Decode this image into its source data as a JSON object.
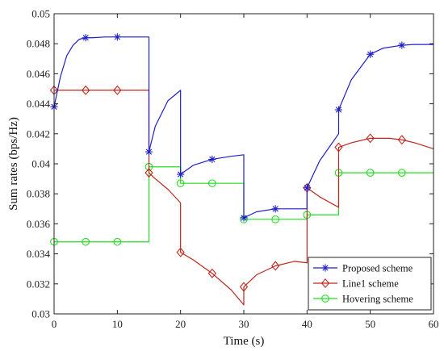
{
  "chart_data": {
    "type": "line",
    "xlabel": "Time (s)",
    "ylabel": "Sum rates (bps/Hz)",
    "xlim": [
      0,
      60
    ],
    "ylim": [
      0.03,
      0.05
    ],
    "xticks": [
      0,
      10,
      20,
      30,
      40,
      50,
      60
    ],
    "xtick_labels": [
      "0",
      "10",
      "20",
      "30",
      "40",
      "50",
      "60"
    ],
    "yticks": [
      0.03,
      0.032,
      0.034,
      0.036,
      0.038,
      0.04,
      0.042,
      0.044,
      0.046,
      0.048,
      0.05
    ],
    "ytick_labels": [
      "0.03",
      "0.032",
      "0.034",
      "0.036",
      "0.038",
      "0.04",
      "0.042",
      "0.044",
      "0.046",
      "0.048",
      "0.05"
    ],
    "grid": false,
    "legend_position": "bottom-right",
    "series": [
      {
        "name": "Proposed scheme",
        "color": "#1f1fc8",
        "marker": "asterisk",
        "x": [
          0,
          1,
          2,
          3,
          4,
          5,
          6,
          8,
          10,
          12,
          14,
          15,
          15,
          16,
          18,
          20,
          20,
          22,
          25,
          28,
          30,
          30,
          32,
          35,
          38,
          40,
          40,
          42,
          45,
          45,
          47,
          50,
          52,
          55,
          57,
          60
        ],
        "y": [
          0.0438,
          0.0458,
          0.0472,
          0.0479,
          0.0483,
          0.0484,
          0.0484,
          0.04845,
          0.04845,
          0.04845,
          0.04845,
          0.04845,
          0.0408,
          0.0425,
          0.0442,
          0.0449,
          0.0393,
          0.0399,
          0.0403,
          0.0405,
          0.0406,
          0.0364,
          0.0368,
          0.037,
          0.037,
          0.037,
          0.0384,
          0.0402,
          0.042,
          0.0436,
          0.0456,
          0.0473,
          0.0477,
          0.0479,
          0.04795,
          0.04795
        ],
        "markers_x": [
          0,
          5,
          10,
          15,
          20,
          25,
          30,
          35,
          40,
          45,
          50,
          55
        ],
        "markers_y": [
          0.0438,
          0.0484,
          0.04845,
          0.0408,
          0.0393,
          0.0403,
          0.0364,
          0.037,
          0.0384,
          0.0436,
          0.0473,
          0.0479
        ]
      },
      {
        "name": "Line1 scheme",
        "color": "#c0261c",
        "marker": "diamond",
        "x": [
          0,
          5,
          10,
          15,
          15,
          16,
          18,
          20,
          20,
          22,
          25,
          28,
          30,
          30,
          32,
          35,
          38,
          40,
          40,
          42,
          45,
          45,
          47,
          50,
          53,
          55,
          57,
          60
        ],
        "y": [
          0.0449,
          0.0449,
          0.0449,
          0.0449,
          0.0394,
          0.039,
          0.0383,
          0.0374,
          0.0341,
          0.0336,
          0.0327,
          0.0316,
          0.0306,
          0.0318,
          0.0326,
          0.0332,
          0.0335,
          0.0334,
          0.0384,
          0.0378,
          0.0371,
          0.0411,
          0.0414,
          0.0417,
          0.0417,
          0.0416,
          0.0414,
          0.041
        ],
        "markers_x": [
          0,
          5,
          10,
          15,
          20,
          25,
          30,
          35,
          40,
          45,
          50,
          55
        ],
        "markers_y": [
          0.0449,
          0.0449,
          0.0449,
          0.0394,
          0.0341,
          0.0327,
          0.0318,
          0.0332,
          0.0384,
          0.0411,
          0.0417,
          0.0416
        ]
      },
      {
        "name": "Hovering scheme",
        "color": "#22dd22",
        "marker": "circle",
        "x": [
          0,
          15,
          15,
          20,
          20,
          30,
          30,
          40,
          40,
          45,
          45,
          60
        ],
        "y": [
          0.0348,
          0.0348,
          0.0398,
          0.0398,
          0.0387,
          0.0387,
          0.0363,
          0.0363,
          0.0366,
          0.0366,
          0.0394,
          0.0394
        ],
        "markers_x": [
          0,
          5,
          10,
          15,
          20,
          25,
          30,
          35,
          40,
          45,
          50,
          55
        ],
        "markers_y": [
          0.0348,
          0.0348,
          0.0348,
          0.0398,
          0.0387,
          0.0387,
          0.0363,
          0.0363,
          0.0366,
          0.0394,
          0.0394,
          0.0394
        ]
      }
    ]
  }
}
